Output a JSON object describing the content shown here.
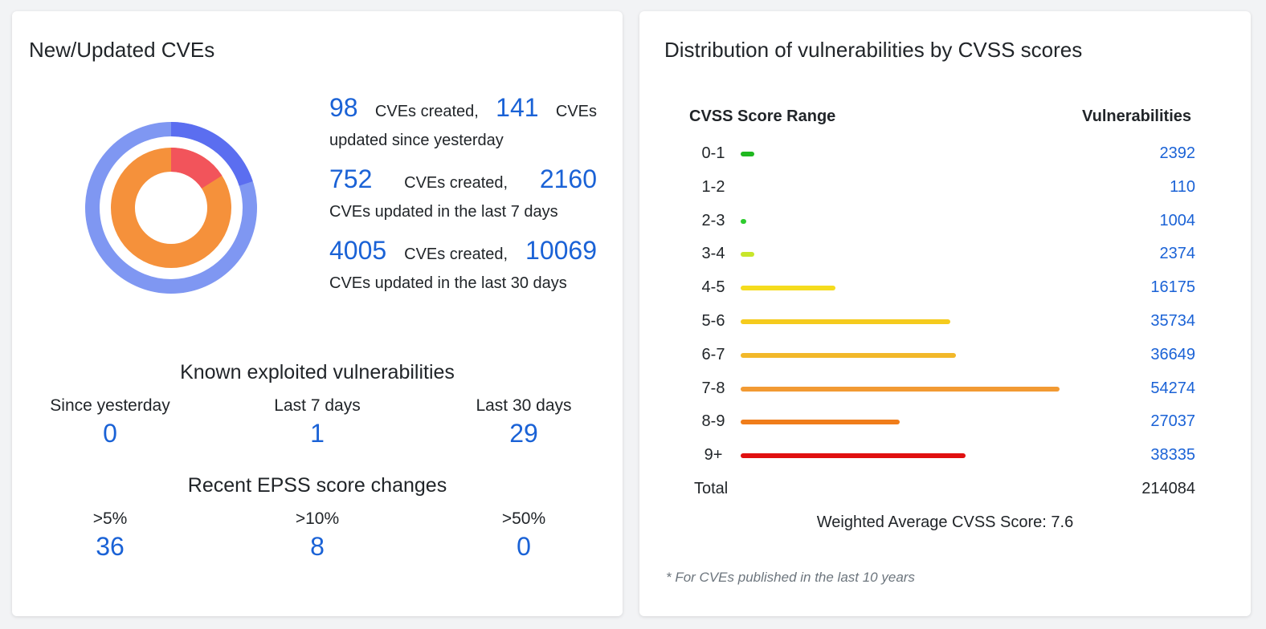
{
  "left_card": {
    "title": "New/Updated CVEs",
    "stats": [
      {
        "created": "98",
        "created_word": "CVEs created,",
        "updated": "141",
        "updated_word": "CVEs",
        "tail": "updated since yesterday"
      },
      {
        "created": "752",
        "created_word": "CVEs created,",
        "updated": "2160",
        "updated_word": "",
        "tail": "CVEs updated in the last 7 days"
      },
      {
        "created": "4005",
        "created_word": "CVEs created,",
        "updated": "10069",
        "updated_word": "",
        "tail": "CVEs updated in the last 30 days"
      }
    ],
    "donut": {
      "outer_color": "#7f97f2",
      "outer_accent_color": "#5b6ef0",
      "outer_accent_fraction": 0.2,
      "inner_color": "#f5913b",
      "inner_accent_color": "#f2545b",
      "inner_accent_fraction": 0.16
    },
    "kev": {
      "title": "Known exploited vulnerabilities",
      "items": [
        {
          "label": "Since yesterday",
          "value": "0"
        },
        {
          "label": "Last 7 days",
          "value": "1"
        },
        {
          "label": "Last 30 days",
          "value": "29"
        }
      ]
    },
    "epss": {
      "title": "Recent EPSS score changes",
      "items": [
        {
          "label": ">5%",
          "value": "36"
        },
        {
          "label": ">10%",
          "value": "8"
        },
        {
          "label": ">50%",
          "value": "0"
        }
      ]
    }
  },
  "right_card": {
    "title": "Distribution of vulnerabilities by CVSS scores",
    "col_range": "CVSS Score Range",
    "col_vulns": "Vulnerabilities",
    "rows": [
      {
        "range": "0-1",
        "value": "2392",
        "count": 2392,
        "color": "#1fb81f"
      },
      {
        "range": "1-2",
        "value": "110",
        "count": 110,
        "color": "#1fb81f"
      },
      {
        "range": "2-3",
        "value": "1004",
        "count": 1004,
        "color": "#2ecc2e"
      },
      {
        "range": "3-4",
        "value": "2374",
        "count": 2374,
        "color": "#c8e62a"
      },
      {
        "range": "4-5",
        "value": "16175",
        "count": 16175,
        "color": "#f5dc1d"
      },
      {
        "range": "5-6",
        "value": "35734",
        "count": 35734,
        "color": "#f5cb1d"
      },
      {
        "range": "6-7",
        "value": "36649",
        "count": 36649,
        "color": "#f2b82a"
      },
      {
        "range": "7-8",
        "value": "54274",
        "count": 54274,
        "color": "#f29a33"
      },
      {
        "range": "8-9",
        "value": "27037",
        "count": 27037,
        "color": "#f07d1a"
      },
      {
        "range": "9+",
        "value": "38335",
        "count": 38335,
        "color": "#e01010"
      }
    ],
    "total_label": "Total",
    "total_value": "214084",
    "weighted_average": "Weighted Average CVSS Score: 7.6",
    "footnote": "* For CVEs published in the last 10 years"
  }
}
